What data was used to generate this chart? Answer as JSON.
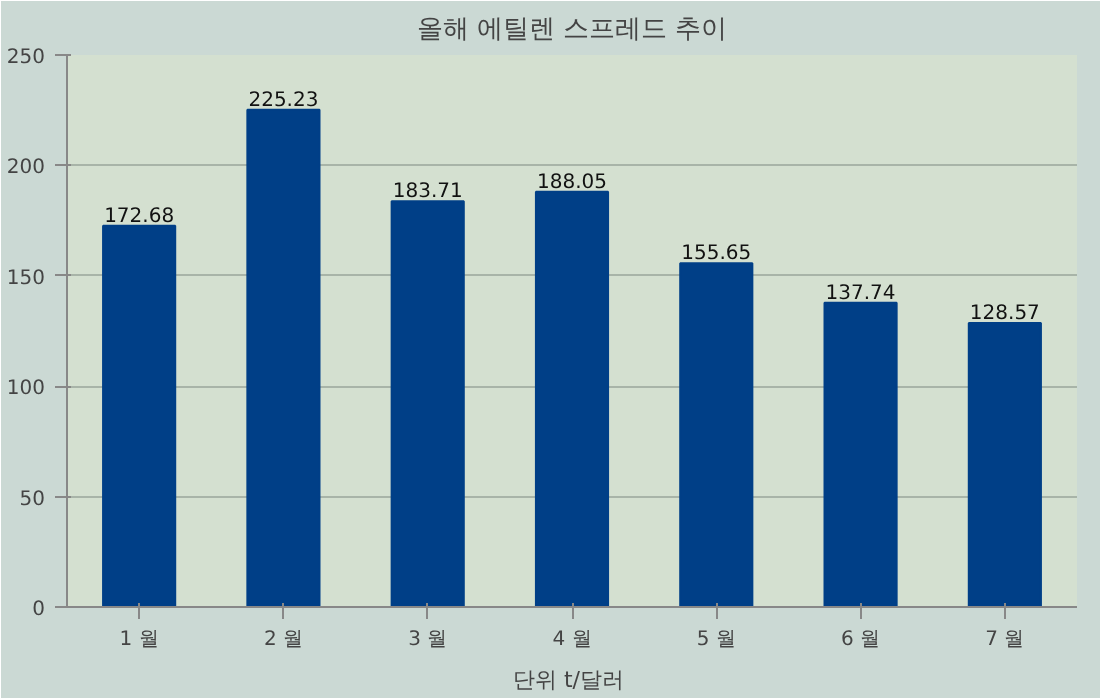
{
  "chart_data": {
    "type": "bar",
    "title": "올해 에틸렌 스프레드 추이",
    "xlabel": "단위  t/달러",
    "categories": [
      "1 월",
      "2 월",
      "3 월",
      "4 월",
      "5 월",
      "6 월",
      "7 월"
    ],
    "values": [
      172.68,
      225.23,
      183.71,
      188.05,
      155.65,
      137.74,
      128.57
    ],
    "color": "#003f87",
    "ylim": [
      0,
      250
    ],
    "yticks": [
      0,
      50,
      100,
      150,
      200,
      250
    ],
    "grid": "y",
    "data_labels": true
  }
}
